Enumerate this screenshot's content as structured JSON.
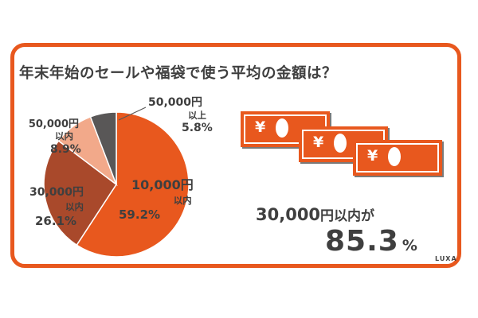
{
  "title": "年末年始のセールや福袋で使う平均の金額は？",
  "chart_data": {
    "type": "pie",
    "title": "年末年始のセールや福袋で使う平均の金額は？",
    "slices": [
      {
        "name": "10,000円以内",
        "value": 59.2,
        "value_label": "59.2%",
        "color": "#e8581e"
      },
      {
        "name": "30,000円以内",
        "value": 26.1,
        "value_label": "26.1%",
        "color": "#a9492b"
      },
      {
        "name": "50,000円以内",
        "value": 8.9,
        "value_label": "8.9%",
        "color": "#f2a98a"
      },
      {
        "name": "50,000円以上",
        "value": 5.8,
        "value_label": "5.8%",
        "color": "#595757"
      }
    ]
  },
  "labels": {
    "s0_a": "10,000円",
    "s0_b": "以内",
    "s0_v": "59.2%",
    "s1_a": "30,000円",
    "s1_b": "以内",
    "s1_v": "26.1%",
    "s2_a": "50,000円",
    "s2_b": "以内",
    "s2_v": "8.9%",
    "s3_a": "50,000円",
    "s3_b": "以上",
    "s3_v": "5.8%"
  },
  "banknotes": {
    "symbol": "¥",
    "count": 3
  },
  "summary": {
    "line1_amount": "30,000",
    "line1_unit": "円以内が",
    "value": "85.3",
    "unit": "%"
  },
  "logo": "LUXA",
  "colors": {
    "accent": "#e8581e",
    "text": "#3f3f3f"
  }
}
